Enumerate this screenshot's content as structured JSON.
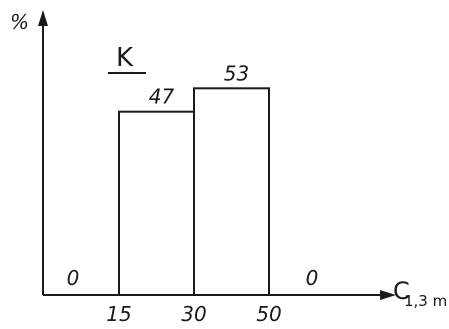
{
  "chart_data": {
    "type": "bar",
    "title": "K",
    "ylabel": "%",
    "xlabel_main": "C",
    "xlabel_sub": "1,3 m",
    "x_ticks": [
      "15",
      "30",
      "50"
    ],
    "bins": [
      {
        "from": null,
        "to": 15,
        "label": "0",
        "value": 0
      },
      {
        "from": 15,
        "to": 30,
        "label": "47",
        "value": 47
      },
      {
        "from": 30,
        "to": 50,
        "label": "53",
        "value": 53
      },
      {
        "from": 50,
        "to": null,
        "label": "0",
        "value": 0
      }
    ],
    "grid": false,
    "legend": "none"
  }
}
